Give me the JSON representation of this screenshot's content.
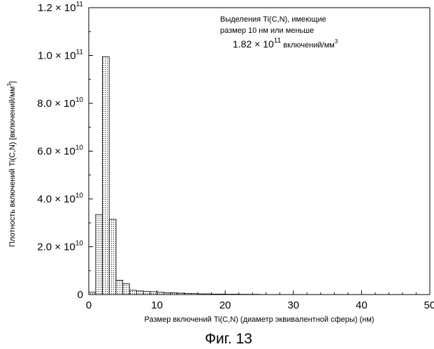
{
  "chart_data": {
    "type": "bar",
    "xlabel": "Размер включений Ti(C,N) (диаметр эквивалентной сферы) (нм)",
    "ylabel": {
      "main": "Плотность включений Ti(C,N) [включений/мм",
      "sup": "3",
      "tail": "]"
    },
    "xlim": [
      0,
      50
    ],
    "ylim": [
      0,
      120000000000.0
    ],
    "grid": false,
    "x_ticks": [
      0,
      10,
      20,
      30,
      40,
      50
    ],
    "x_tick_labels": [
      "0",
      "10",
      "20",
      "30",
      "40",
      "50"
    ],
    "y_ticks": [
      {
        "value": 0,
        "mantissa": "0",
        "exp": ""
      },
      {
        "value": 20000000000.0,
        "mantissa": "2.0 × 10",
        "exp": "10"
      },
      {
        "value": 40000000000.0,
        "mantissa": "4.0 × 10",
        "exp": "10"
      },
      {
        "value": 60000000000.0,
        "mantissa": "6.0 × 10",
        "exp": "10"
      },
      {
        "value": 80000000000.0,
        "mantissa": "8.0 × 10",
        "exp": "10"
      },
      {
        "value": 100000000000.0,
        "mantissa": "1.0 × 10",
        "exp": "11"
      },
      {
        "value": 120000000000.0,
        "mantissa": "1.2 × 10",
        "exp": "11"
      }
    ],
    "bin_width": 1,
    "bins": [
      {
        "x0": 0,
        "value": 1000000000.0
      },
      {
        "x0": 1,
        "value": 33500000000.0
      },
      {
        "x0": 2,
        "value": 99500000000.0
      },
      {
        "x0": 3,
        "value": 31500000000.0
      },
      {
        "x0": 4,
        "value": 6000000000.0
      },
      {
        "x0": 5,
        "value": 4500000000.0
      },
      {
        "x0": 6,
        "value": 1800000000.0
      },
      {
        "x0": 7,
        "value": 1500000000.0
      },
      {
        "x0": 8,
        "value": 1300000000.0
      },
      {
        "x0": 9,
        "value": 1200000000.0
      },
      {
        "x0": 10,
        "value": 1000000000.0
      },
      {
        "x0": 11,
        "value": 800000000.0
      },
      {
        "x0": 12,
        "value": 700000000.0
      },
      {
        "x0": 13,
        "value": 600000000.0
      },
      {
        "x0": 14,
        "value": 500000000.0
      },
      {
        "x0": 15,
        "value": 400000000.0
      },
      {
        "x0": 16,
        "value": 300000000.0
      },
      {
        "x0": 17,
        "value": 300000000.0
      },
      {
        "x0": 18,
        "value": 200000000.0
      },
      {
        "x0": 19,
        "value": 200000000.0
      },
      {
        "x0": 20,
        "value": 150000000.0
      },
      {
        "x0": 21,
        "value": 150000000.0
      },
      {
        "x0": 22,
        "value": 120000000.0
      },
      {
        "x0": 23,
        "value": 100000000.0
      },
      {
        "x0": 24,
        "value": 100000000.0
      }
    ],
    "annotation": {
      "line1": "Выделения Ti(C,N), имеющие",
      "line2": "размер 10 нм или меньше",
      "value_mantissa": "1.82 × 10",
      "value_exp": "11",
      "value_unit": " включений/мм",
      "value_unit_sup": "3"
    }
  },
  "figure_caption": "Фиг. 13"
}
